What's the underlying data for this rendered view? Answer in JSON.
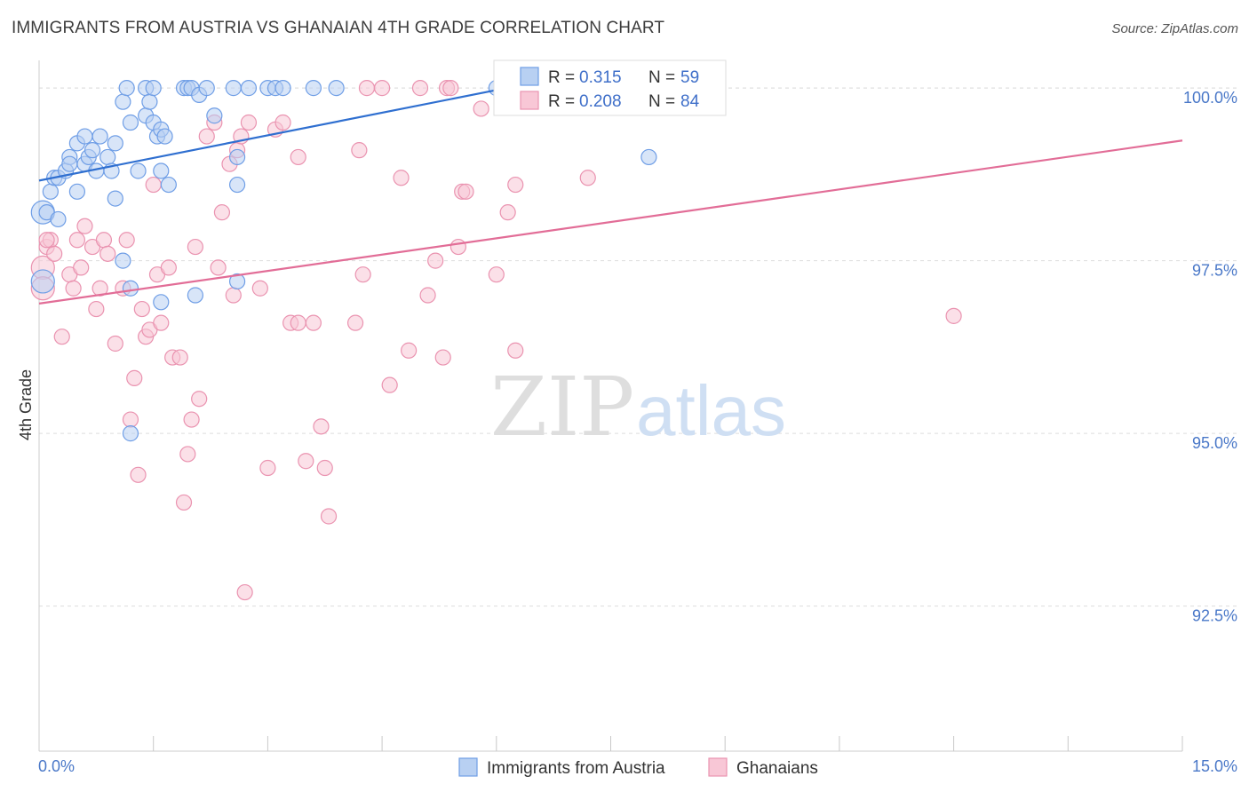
{
  "title": "IMMIGRANTS FROM AUSTRIA VS GHANAIAN 4TH GRADE CORRELATION CHART",
  "source": "Source: ZipAtlas.com",
  "watermark": {
    "zip": "ZIP",
    "atlas": "atlas"
  },
  "colors": {
    "blue_fill": "#b8d0f2",
    "blue_stroke": "#6f9ee6",
    "blue_line": "#2f6fd0",
    "pink_fill": "#f8c7d6",
    "pink_stroke": "#ea93b0",
    "pink_line": "#e26d97",
    "grid": "#dddddd",
    "axis_text": "#4a78c8"
  },
  "stats_legend": [
    {
      "r_label": "R =",
      "r_value": "0.315",
      "n_label": "N =",
      "n_value": "59"
    },
    {
      "r_label": "R =",
      "r_value": "0.208",
      "n_label": "N =",
      "n_value": "84"
    }
  ],
  "chart_data": {
    "type": "scatter",
    "title": "IMMIGRANTS FROM AUSTRIA VS GHANAIAN 4TH GRADE CORRELATION CHART",
    "xlabel": "",
    "ylabel": "4th Grade",
    "xlim": [
      0,
      15
    ],
    "ylim": [
      90.4,
      100.4
    ],
    "x_tick_labels": [
      "0.0%",
      "15.0%"
    ],
    "y_ticks": [
      92.5,
      95.0,
      97.5,
      100.0
    ],
    "y_tick_labels": [
      "92.5%",
      "95.0%",
      "97.5%",
      "100.0%"
    ],
    "grid": true,
    "legend_position": "bottom-center",
    "series": [
      {
        "name": "Immigrants from Austria",
        "color": "#6f9ee6",
        "trend": {
          "x": [
            0,
            6.0
          ],
          "y": [
            98.66,
            99.97
          ]
        },
        "points": [
          [
            0.05,
            98.2
          ],
          [
            0.1,
            98.2
          ],
          [
            0.15,
            98.5
          ],
          [
            0.2,
            98.7
          ],
          [
            0.25,
            98.7
          ],
          [
            0.25,
            98.1
          ],
          [
            0.35,
            98.8
          ],
          [
            0.4,
            99.0
          ],
          [
            0.4,
            98.9
          ],
          [
            0.5,
            98.5
          ],
          [
            0.5,
            99.2
          ],
          [
            0.6,
            98.9
          ],
          [
            0.6,
            99.3
          ],
          [
            0.65,
            99.0
          ],
          [
            0.7,
            99.1
          ],
          [
            0.75,
            98.8
          ],
          [
            0.8,
            99.3
          ],
          [
            0.9,
            99.0
          ],
          [
            0.95,
            98.8
          ],
          [
            1.0,
            98.4
          ],
          [
            1.0,
            99.2
          ],
          [
            1.1,
            99.8
          ],
          [
            1.1,
            97.5
          ],
          [
            1.15,
            100.0
          ],
          [
            1.2,
            97.1
          ],
          [
            1.2,
            99.5
          ],
          [
            1.3,
            98.8
          ],
          [
            1.4,
            99.6
          ],
          [
            1.4,
            100.0
          ],
          [
            1.45,
            99.8
          ],
          [
            1.5,
            99.5
          ],
          [
            1.5,
            100.0
          ],
          [
            1.55,
            99.3
          ],
          [
            1.6,
            96.9
          ],
          [
            1.6,
            99.4
          ],
          [
            1.6,
            98.8
          ],
          [
            1.65,
            99.3
          ],
          [
            1.7,
            98.6
          ],
          [
            1.9,
            100.0
          ],
          [
            1.95,
            100.0
          ],
          [
            2.0,
            100.0
          ],
          [
            2.1,
            99.9
          ],
          [
            2.2,
            100.0
          ],
          [
            2.3,
            99.6
          ],
          [
            2.55,
            100.0
          ],
          [
            2.75,
            100.0
          ],
          [
            3.0,
            100.0
          ],
          [
            3.1,
            100.0
          ],
          [
            3.2,
            100.0
          ],
          [
            3.6,
            100.0
          ],
          [
            3.9,
            100.0
          ],
          [
            6.0,
            100.0
          ],
          [
            8.0,
            99.0
          ],
          [
            0.05,
            97.2
          ],
          [
            1.2,
            95.0
          ],
          [
            2.05,
            97.0
          ],
          [
            2.6,
            97.2
          ],
          [
            2.6,
            98.6
          ],
          [
            2.6,
            99.0
          ]
        ]
      },
      {
        "name": "Ghanaians",
        "color": "#ea93b0",
        "trend": {
          "x": [
            0,
            15.0
          ],
          "y": [
            96.88,
            99.24
          ]
        },
        "points": [
          [
            0.05,
            97.4
          ],
          [
            0.1,
            97.7
          ],
          [
            0.15,
            97.8
          ],
          [
            0.2,
            97.6
          ],
          [
            0.3,
            96.4
          ],
          [
            0.4,
            97.3
          ],
          [
            0.45,
            97.1
          ],
          [
            0.5,
            97.8
          ],
          [
            0.55,
            97.4
          ],
          [
            0.6,
            98.0
          ],
          [
            0.7,
            97.7
          ],
          [
            0.75,
            96.8
          ],
          [
            0.8,
            97.1
          ],
          [
            0.85,
            97.8
          ],
          [
            0.9,
            97.6
          ],
          [
            1.0,
            96.3
          ],
          [
            1.1,
            97.1
          ],
          [
            1.15,
            97.8
          ],
          [
            1.2,
            95.2
          ],
          [
            1.25,
            95.8
          ],
          [
            1.3,
            94.4
          ],
          [
            1.35,
            96.8
          ],
          [
            1.4,
            96.4
          ],
          [
            1.45,
            96.5
          ],
          [
            1.5,
            98.6
          ],
          [
            1.55,
            97.3
          ],
          [
            1.6,
            96.6
          ],
          [
            1.7,
            97.4
          ],
          [
            1.75,
            96.1
          ],
          [
            1.85,
            96.1
          ],
          [
            1.9,
            94.0
          ],
          [
            1.95,
            94.7
          ],
          [
            2.0,
            95.2
          ],
          [
            2.05,
            97.7
          ],
          [
            2.1,
            95.5
          ],
          [
            2.2,
            99.3
          ],
          [
            2.3,
            99.5
          ],
          [
            2.35,
            97.4
          ],
          [
            2.4,
            98.2
          ],
          [
            2.5,
            98.9
          ],
          [
            2.55,
            97.0
          ],
          [
            2.6,
            99.1
          ],
          [
            2.65,
            99.3
          ],
          [
            2.7,
            92.7
          ],
          [
            2.75,
            99.5
          ],
          [
            2.9,
            97.1
          ],
          [
            3.0,
            94.5
          ],
          [
            3.1,
            99.4
          ],
          [
            3.2,
            99.5
          ],
          [
            3.3,
            96.6
          ],
          [
            3.4,
            96.6
          ],
          [
            3.4,
            99.0
          ],
          [
            3.5,
            94.6
          ],
          [
            3.6,
            96.6
          ],
          [
            3.7,
            95.1
          ],
          [
            3.75,
            94.5
          ],
          [
            3.8,
            93.8
          ],
          [
            4.15,
            96.6
          ],
          [
            4.2,
            99.1
          ],
          [
            4.25,
            97.3
          ],
          [
            4.3,
            100.0
          ],
          [
            4.5,
            100.0
          ],
          [
            4.6,
            95.7
          ],
          [
            4.75,
            98.7
          ],
          [
            4.85,
            96.2
          ],
          [
            5.0,
            100.0
          ],
          [
            5.1,
            97.0
          ],
          [
            5.2,
            97.5
          ],
          [
            5.3,
            96.1
          ],
          [
            5.35,
            100.0
          ],
          [
            5.4,
            100.0
          ],
          [
            5.5,
            97.7
          ],
          [
            5.55,
            98.5
          ],
          [
            5.6,
            98.5
          ],
          [
            5.8,
            99.7
          ],
          [
            6.0,
            97.3
          ],
          [
            6.15,
            98.2
          ],
          [
            6.25,
            98.6
          ],
          [
            6.25,
            96.2
          ],
          [
            6.9,
            100.0
          ],
          [
            7.2,
            98.7
          ],
          [
            12.0,
            96.7
          ],
          [
            0.05,
            97.1
          ],
          [
            0.1,
            97.8
          ]
        ]
      }
    ]
  }
}
